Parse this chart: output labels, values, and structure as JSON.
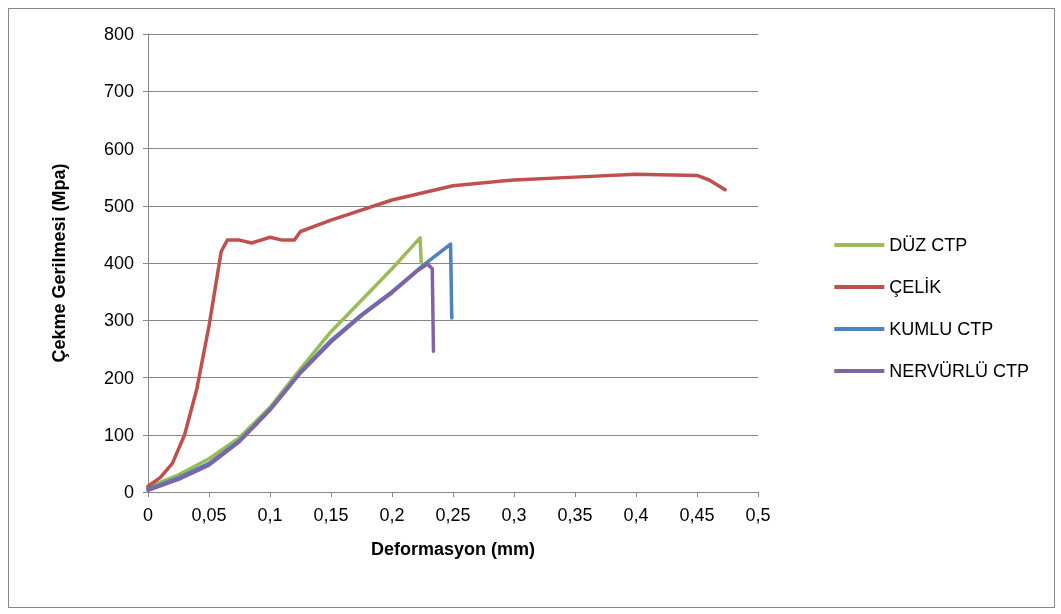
{
  "chart_data": {
    "type": "line",
    "xlabel": "Deformasyon (mm)",
    "ylabel": "Çekme Gerilmesi (Mpa)",
    "xlim": [
      0,
      0.5
    ],
    "xticks": [
      0,
      {
        "value": 0.05,
        "label": "0,05"
      },
      {
        "value": 0.1,
        "label": "0,1"
      },
      {
        "value": 0.15,
        "label": "0,15"
      },
      {
        "value": 0.2,
        "label": "0,2"
      },
      {
        "value": 0.25,
        "label": "0,25"
      },
      {
        "value": 0.3,
        "label": "0,3"
      },
      {
        "value": 0.35,
        "label": "0,35"
      },
      {
        "value": 0.4,
        "label": "0,4"
      },
      {
        "value": 0.45,
        "label": "0,45"
      },
      {
        "value": 0.5,
        "label": "0,5"
      }
    ],
    "ylim": [
      0,
      800
    ],
    "yticks": [
      0,
      100,
      200,
      300,
      400,
      500,
      600,
      700,
      800
    ],
    "grid": "y",
    "legend": "right",
    "marker": "none",
    "line_style": "solid",
    "series": [
      {
        "name": "DÜZ CTP",
        "color": "#9bbb59",
        "x": [
          0,
          0.025,
          0.05,
          0.075,
          0.1,
          0.125,
          0.15,
          0.175,
          0.2,
          0.223,
          0.224
        ],
        "values": [
          8,
          30,
          58,
          95,
          148,
          215,
          280,
          335,
          390,
          444,
          400
        ]
      },
      {
        "name": "ÇELİK",
        "color": "#c0504d",
        "x": [
          0,
          0.01,
          0.02,
          0.03,
          0.04,
          0.05,
          0.06,
          0.065,
          0.075,
          0.085,
          0.1,
          0.11,
          0.12,
          0.125,
          0.15,
          0.2,
          0.25,
          0.3,
          0.35,
          0.4,
          0.45,
          0.46,
          0.473
        ],
        "values": [
          10,
          25,
          50,
          100,
          180,
          290,
          420,
          440,
          440,
          435,
          445,
          440,
          440,
          455,
          475,
          510,
          535,
          545,
          550,
          555,
          553,
          545,
          528
        ]
      },
      {
        "name": "KUMLU CTP",
        "color": "#4f81bd",
        "x": [
          0,
          0.025,
          0.05,
          0.075,
          0.1,
          0.125,
          0.15,
          0.175,
          0.2,
          0.225,
          0.248,
          0.249
        ],
        "values": [
          5,
          25,
          50,
          90,
          145,
          210,
          265,
          310,
          350,
          395,
          433,
          304
        ]
      },
      {
        "name": "NERVÜRLÜ CTP",
        "color": "#8064a2",
        "x": [
          0,
          0.025,
          0.05,
          0.075,
          0.1,
          0.125,
          0.15,
          0.175,
          0.2,
          0.22,
          0.229,
          0.233,
          0.234
        ],
        "values": [
          3,
          22,
          47,
          88,
          143,
          208,
          262,
          308,
          348,
          385,
          398,
          390,
          246
        ]
      }
    ]
  }
}
